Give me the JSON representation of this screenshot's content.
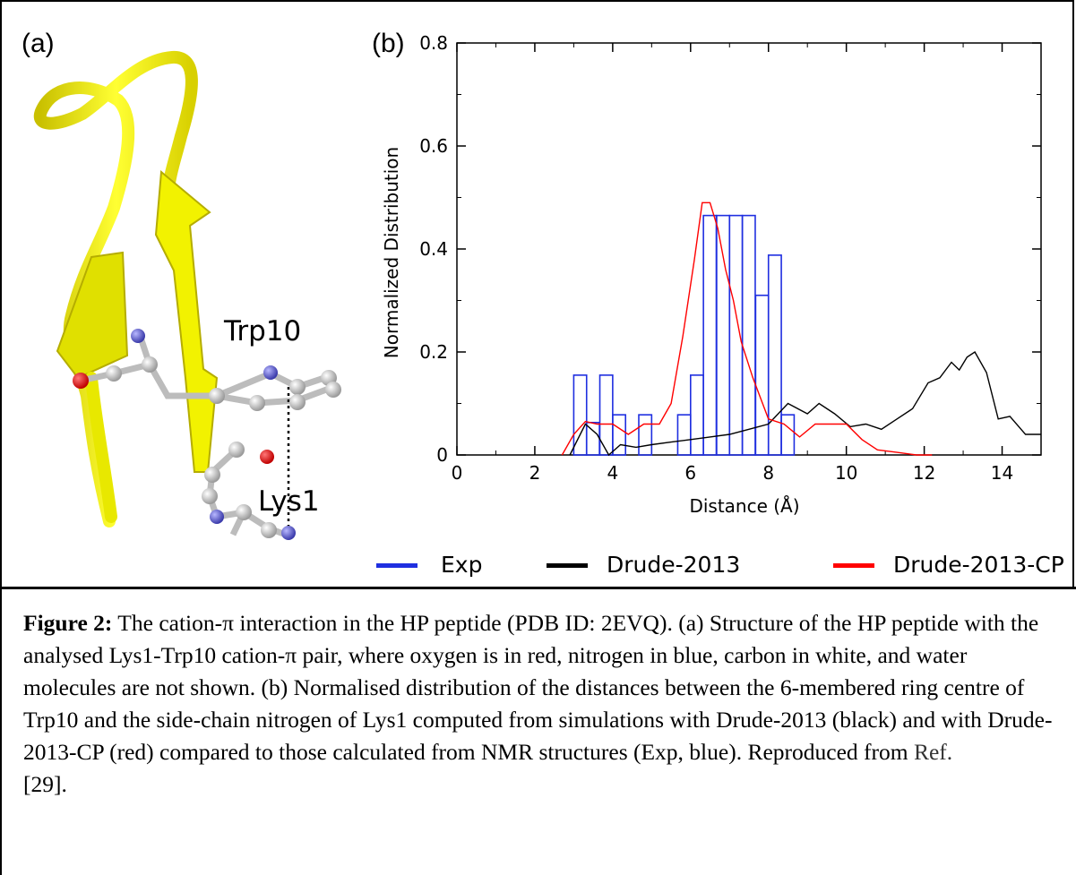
{
  "panel_a": {
    "label": "(a)",
    "residue_labels": [
      "Trp10",
      "Lys1"
    ]
  },
  "panel_b": {
    "label": "(b)"
  },
  "legend": {
    "items": [
      {
        "label": "Exp",
        "color": "#1f2fe0"
      },
      {
        "label": "Drude-2013",
        "color": "#000000"
      },
      {
        "label": "Drude-2013-CP",
        "color": "#ff0000"
      }
    ]
  },
  "chart_data": {
    "type": "line",
    "xlabel": "Distance (Å)",
    "ylabel": "Normalized Distribution",
    "xlim": [
      0,
      15
    ],
    "ylim": [
      0,
      0.8
    ],
    "xticks": [
      "0",
      "2",
      "4",
      "6",
      "8",
      "10",
      "12",
      "14"
    ],
    "yticks": [
      "0",
      "0.2",
      "0.4",
      "0.6",
      "0.8"
    ],
    "grid": false,
    "legend_position": "bottom",
    "series": [
      {
        "name": "Exp",
        "style": "histogram",
        "color": "#1f2fe0",
        "bin_width": 0.33,
        "bins": [
          {
            "x": 3.0,
            "y": 0.155
          },
          {
            "x": 3.33,
            "y": 0.063
          },
          {
            "x": 3.67,
            "y": 0.155
          },
          {
            "x": 4.0,
            "y": 0.078
          },
          {
            "x": 4.67,
            "y": 0.078
          },
          {
            "x": 5.67,
            "y": 0.078
          },
          {
            "x": 6.0,
            "y": 0.155
          },
          {
            "x": 6.33,
            "y": 0.465
          },
          {
            "x": 6.67,
            "y": 0.465
          },
          {
            "x": 7.0,
            "y": 0.465
          },
          {
            "x": 7.33,
            "y": 0.465
          },
          {
            "x": 7.67,
            "y": 0.31
          },
          {
            "x": 8.0,
            "y": 0.388
          },
          {
            "x": 8.33,
            "y": 0.078
          }
        ]
      },
      {
        "name": "Drude-2013",
        "color": "#000000",
        "x": [
          2.9,
          3.3,
          3.6,
          3.9,
          4.2,
          4.6,
          5.0,
          5.5,
          6.0,
          6.5,
          7.0,
          7.5,
          8.0,
          8.5,
          9.0,
          9.3,
          9.7,
          10.1,
          10.5,
          10.9,
          11.3,
          11.7,
          12.1,
          12.4,
          12.7,
          12.9,
          13.1,
          13.3,
          13.6,
          13.9,
          14.2,
          14.6,
          15.0
        ],
        "y": [
          0.0,
          0.06,
          0.04,
          0.0,
          0.02,
          0.015,
          0.02,
          0.025,
          0.03,
          0.035,
          0.04,
          0.05,
          0.06,
          0.1,
          0.08,
          0.1,
          0.08,
          0.055,
          0.06,
          0.05,
          0.07,
          0.09,
          0.14,
          0.15,
          0.18,
          0.165,
          0.19,
          0.2,
          0.16,
          0.07,
          0.075,
          0.04,
          0.04
        ]
      },
      {
        "name": "Drude-2013-CP",
        "color": "#ff0000",
        "x": [
          2.7,
          3.0,
          3.3,
          3.6,
          4.0,
          4.4,
          4.8,
          5.2,
          5.5,
          5.8,
          6.1,
          6.3,
          6.5,
          6.7,
          6.9,
          7.1,
          7.3,
          7.6,
          8.0,
          8.4,
          8.8,
          9.2,
          9.6,
          10.0,
          10.4,
          10.8,
          11.3,
          11.8,
          12.2
        ],
        "y": [
          0.0,
          0.04,
          0.065,
          0.06,
          0.06,
          0.04,
          0.06,
          0.06,
          0.1,
          0.23,
          0.38,
          0.49,
          0.49,
          0.44,
          0.36,
          0.3,
          0.22,
          0.15,
          0.07,
          0.06,
          0.035,
          0.06,
          0.06,
          0.06,
          0.03,
          0.01,
          0.005,
          0.0,
          0.0
        ]
      }
    ]
  },
  "caption": {
    "label": "Figure 2:",
    "text": " The cation-π interaction in the HP peptide (PDB ID: 2EVQ). (a) Structure of the HP peptide with the analysed Lys1-Trp10 cation-π pair, where oxygen is in red, nitrogen in blue, carbon in white, and water molecules are not shown. (b) Normalised distribution of the distances between the 6-membered ring centre of Trp10 and the side-chain nitrogen of Lys1 computed from simulations with Drude-2013 (black) and with Drude-2013-CP (red) compared to those calculated from NMR structures (Exp, blue). Reproduced from ",
    "ref_text": "Ref.",
    "ref_number": "[29]."
  }
}
